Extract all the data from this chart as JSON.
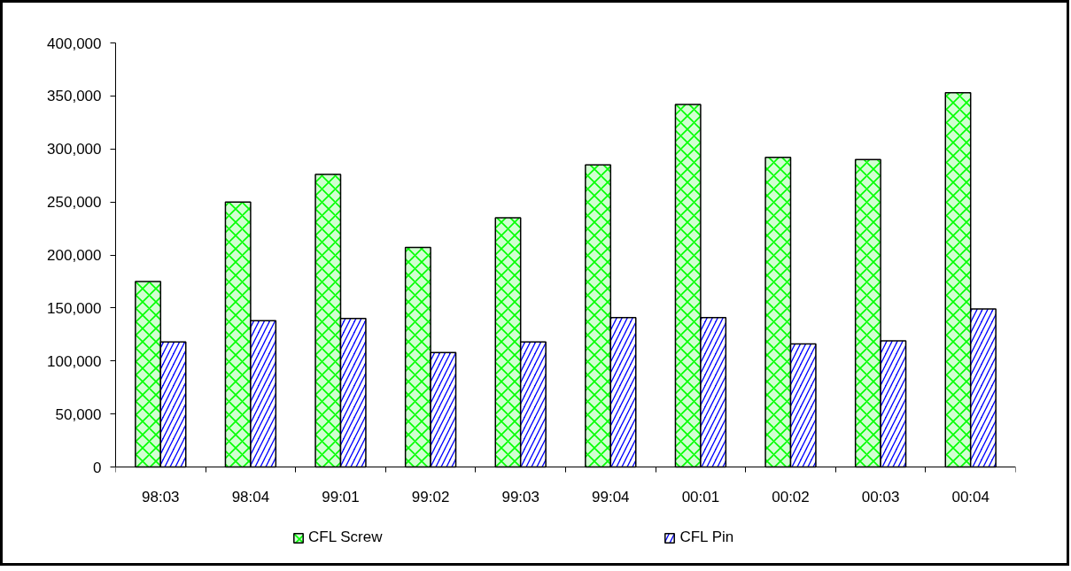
{
  "chart_data": {
    "type": "bar",
    "categories": [
      "98:03",
      "98:04",
      "99:01",
      "99:02",
      "99:03",
      "99:04",
      "00:01",
      "00:02",
      "00:03",
      "00:04"
    ],
    "series": [
      {
        "name": "CFL Screw",
        "color": "#00ff00",
        "values": [
          175000,
          250000,
          276000,
          207000,
          235000,
          285000,
          342000,
          292000,
          290000,
          353000
        ]
      },
      {
        "name": "CFL Pin",
        "color": "#0000ff",
        "values": [
          118000,
          138000,
          140000,
          108000,
          118000,
          141000,
          141000,
          116000,
          119000,
          149000
        ]
      }
    ],
    "ylim": [
      0,
      400000
    ],
    "yticks": [
      0,
      {
        "value": 50000,
        "label": "50,000"
      },
      {
        "value": 100000,
        "label": "100,000"
      },
      {
        "value": 150000,
        "label": "150,000"
      },
      {
        "value": 200000,
        "label": "200,000"
      },
      {
        "value": 250000,
        "label": "250,000"
      },
      {
        "value": 300000,
        "label": "300,000"
      },
      {
        "value": 350000,
        "label": "350,000"
      },
      {
        "value": 400000,
        "label": "400,000"
      }
    ],
    "legend": "bottom"
  }
}
